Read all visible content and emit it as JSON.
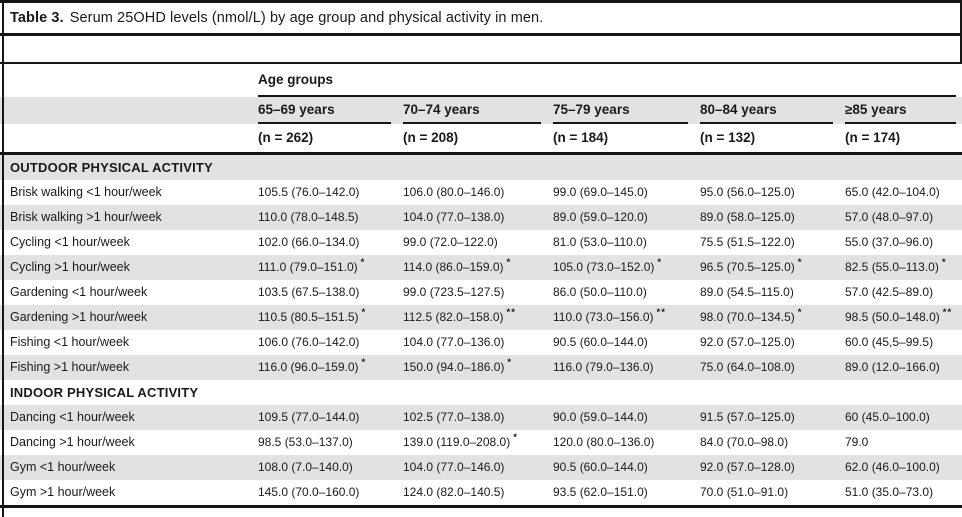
{
  "title": {
    "prefix": "Table 3.",
    "text": "Serum 25OHD levels (nmol/L) by age group and physical activity in men."
  },
  "style": {
    "row_shade": "#e2e2e2",
    "rule_color": "#161616"
  },
  "table": {
    "age_groups_label": "Age groups",
    "columns": [
      {
        "label": "65–69 years",
        "n": "(n = 262)"
      },
      {
        "label": "70–74 years",
        "n": "(n = 208)"
      },
      {
        "label": "75–79 years",
        "n": "(n = 184)"
      },
      {
        "label": "80–84 years",
        "n": "(n = 132)"
      },
      {
        "label": "≥85 years",
        "n": "(n = 174)"
      }
    ],
    "rows": [
      {
        "type": "section",
        "label": "OUTDOOR PHYSICAL ACTIVITY"
      },
      {
        "type": "data",
        "label": "Brisk walking <1 hour/week",
        "cells": [
          {
            "v": "105.5 (76.0–142.0)",
            "m": ""
          },
          {
            "v": "106.0 (80.0–146.0)",
            "m": ""
          },
          {
            "v": "99.0 (69.0–145.0)",
            "m": ""
          },
          {
            "v": "95.0 (56.0–125.0)",
            "m": ""
          },
          {
            "v": "65.0 (42.0–104.0)",
            "m": ""
          }
        ]
      },
      {
        "type": "data",
        "label": "Brisk walking >1 hour/week",
        "cells": [
          {
            "v": "110.0 (78.0–148.5)",
            "m": ""
          },
          {
            "v": "104.0 (77.0–138.0)",
            "m": ""
          },
          {
            "v": "89.0 (59.0–120.0)",
            "m": ""
          },
          {
            "v": "89.0 (58.0–125.0)",
            "m": ""
          },
          {
            "v": "57.0 (48.0–97.0)",
            "m": ""
          }
        ]
      },
      {
        "type": "data",
        "label": "Cycling <1 hour/week",
        "cells": [
          {
            "v": "102.0 (66.0–134.0)",
            "m": ""
          },
          {
            "v": "99.0 (72.0–122.0)",
            "m": ""
          },
          {
            "v": "81.0 (53.0–110.0)",
            "m": ""
          },
          {
            "v": "75.5 (51.5–122.0)",
            "m": ""
          },
          {
            "v": "55.0 (37.0–96.0)",
            "m": ""
          }
        ]
      },
      {
        "type": "data",
        "label": "Cycling >1 hour/week",
        "cells": [
          {
            "v": "111.0 (79.0–151.0)",
            "m": "*"
          },
          {
            "v": "114.0 (86.0–159.0)",
            "m": "*"
          },
          {
            "v": "105.0 (73.0–152.0)",
            "m": "*"
          },
          {
            "v": "96.5 (70.5–125.0)",
            "m": "*"
          },
          {
            "v": "82.5 (55.0–113.0)",
            "m": "*"
          }
        ]
      },
      {
        "type": "data",
        "label": "Gardening <1 hour/week",
        "cells": [
          {
            "v": "103.5 (67.5–138.0)",
            "m": ""
          },
          {
            "v": "99.0 (723.5–127.5)",
            "m": ""
          },
          {
            "v": "86.0 (50.0–110.0)",
            "m": ""
          },
          {
            "v": "89.0 (54.5–115.0)",
            "m": ""
          },
          {
            "v": "57.0 (42.5–89.0)",
            "m": ""
          }
        ]
      },
      {
        "type": "data",
        "label": "Gardening >1 hour/week",
        "cells": [
          {
            "v": "110.5 (80.5–151.5)",
            "m": "*"
          },
          {
            "v": "112.5 (82.0–158.0)",
            "m": "**"
          },
          {
            "v": "110.0 (73.0–156.0)",
            "m": "**"
          },
          {
            "v": "98.0 (70.0–134.5)",
            "m": "*"
          },
          {
            "v": "98.5 (50.0–148.0)",
            "m": "**"
          }
        ]
      },
      {
        "type": "data",
        "label": "Fishing <1 hour/week",
        "cells": [
          {
            "v": "106.0 (76.0–142.0)",
            "m": ""
          },
          {
            "v": "104.0 (77.0–136.0)",
            "m": ""
          },
          {
            "v": "90.5 (60.0–144.0)",
            "m": ""
          },
          {
            "v": "92.0 (57.0–125.0)",
            "m": ""
          },
          {
            "v": "60.0 (45,5–99.5)",
            "m": ""
          }
        ]
      },
      {
        "type": "data",
        "label": "Fishing >1 hour/week",
        "cells": [
          {
            "v": "116.0 (96.0–159.0)",
            "m": "*"
          },
          {
            "v": "150.0 (94.0–186.0)",
            "m": "*"
          },
          {
            "v": "116.0 (79.0–136.0)",
            "m": ""
          },
          {
            "v": "75.0 (64.0–108.0)",
            "m": ""
          },
          {
            "v": "89.0 (12.0–166.0)",
            "m": ""
          }
        ]
      },
      {
        "type": "section",
        "label": "INDOOR PHYSICAL ACTIVITY"
      },
      {
        "type": "data",
        "label": "Dancing <1 hour/week",
        "cells": [
          {
            "v": "109.5 (77.0–144.0)",
            "m": ""
          },
          {
            "v": "102.5 (77.0–138.0)",
            "m": ""
          },
          {
            "v": "90.0 (59.0–144.0)",
            "m": ""
          },
          {
            "v": "91.5 (57.0–125.0)",
            "m": ""
          },
          {
            "v": "60 (45.0–100.0)",
            "m": ""
          }
        ]
      },
      {
        "type": "data",
        "label": "Dancing >1 hour/week",
        "cells": [
          {
            "v": "98.5 (53.0–137.0)",
            "m": ""
          },
          {
            "v": "139.0 (119.0–208.0)",
            "m": "*"
          },
          {
            "v": "120.0 (80.0–136.0)",
            "m": ""
          },
          {
            "v": "84.0 (70.0–98.0)",
            "m": ""
          },
          {
            "v": "79.0",
            "m": ""
          }
        ]
      },
      {
        "type": "data",
        "label": "Gym <1 hour/week",
        "cells": [
          {
            "v": "108.0 (7.0–140.0)",
            "m": ""
          },
          {
            "v": "104.0 (77.0–146.0)",
            "m": ""
          },
          {
            "v": "90.5 (60.0–144.0)",
            "m": ""
          },
          {
            "v": "92.0 (57.0–128.0)",
            "m": ""
          },
          {
            "v": "62.0 (46.0–100.0)",
            "m": ""
          }
        ]
      },
      {
        "type": "data",
        "label": "Gym >1 hour/week",
        "cells": [
          {
            "v": "145.0 (70.0–160.0)",
            "m": ""
          },
          {
            "v": "124.0 (82.0–140.5)",
            "m": ""
          },
          {
            "v": "93.5 (62.0–151.0)",
            "m": ""
          },
          {
            "v": "70.0 (51.0–91.0)",
            "m": ""
          },
          {
            "v": "51.0 (35.0–73.0)",
            "m": ""
          }
        ]
      }
    ]
  }
}
